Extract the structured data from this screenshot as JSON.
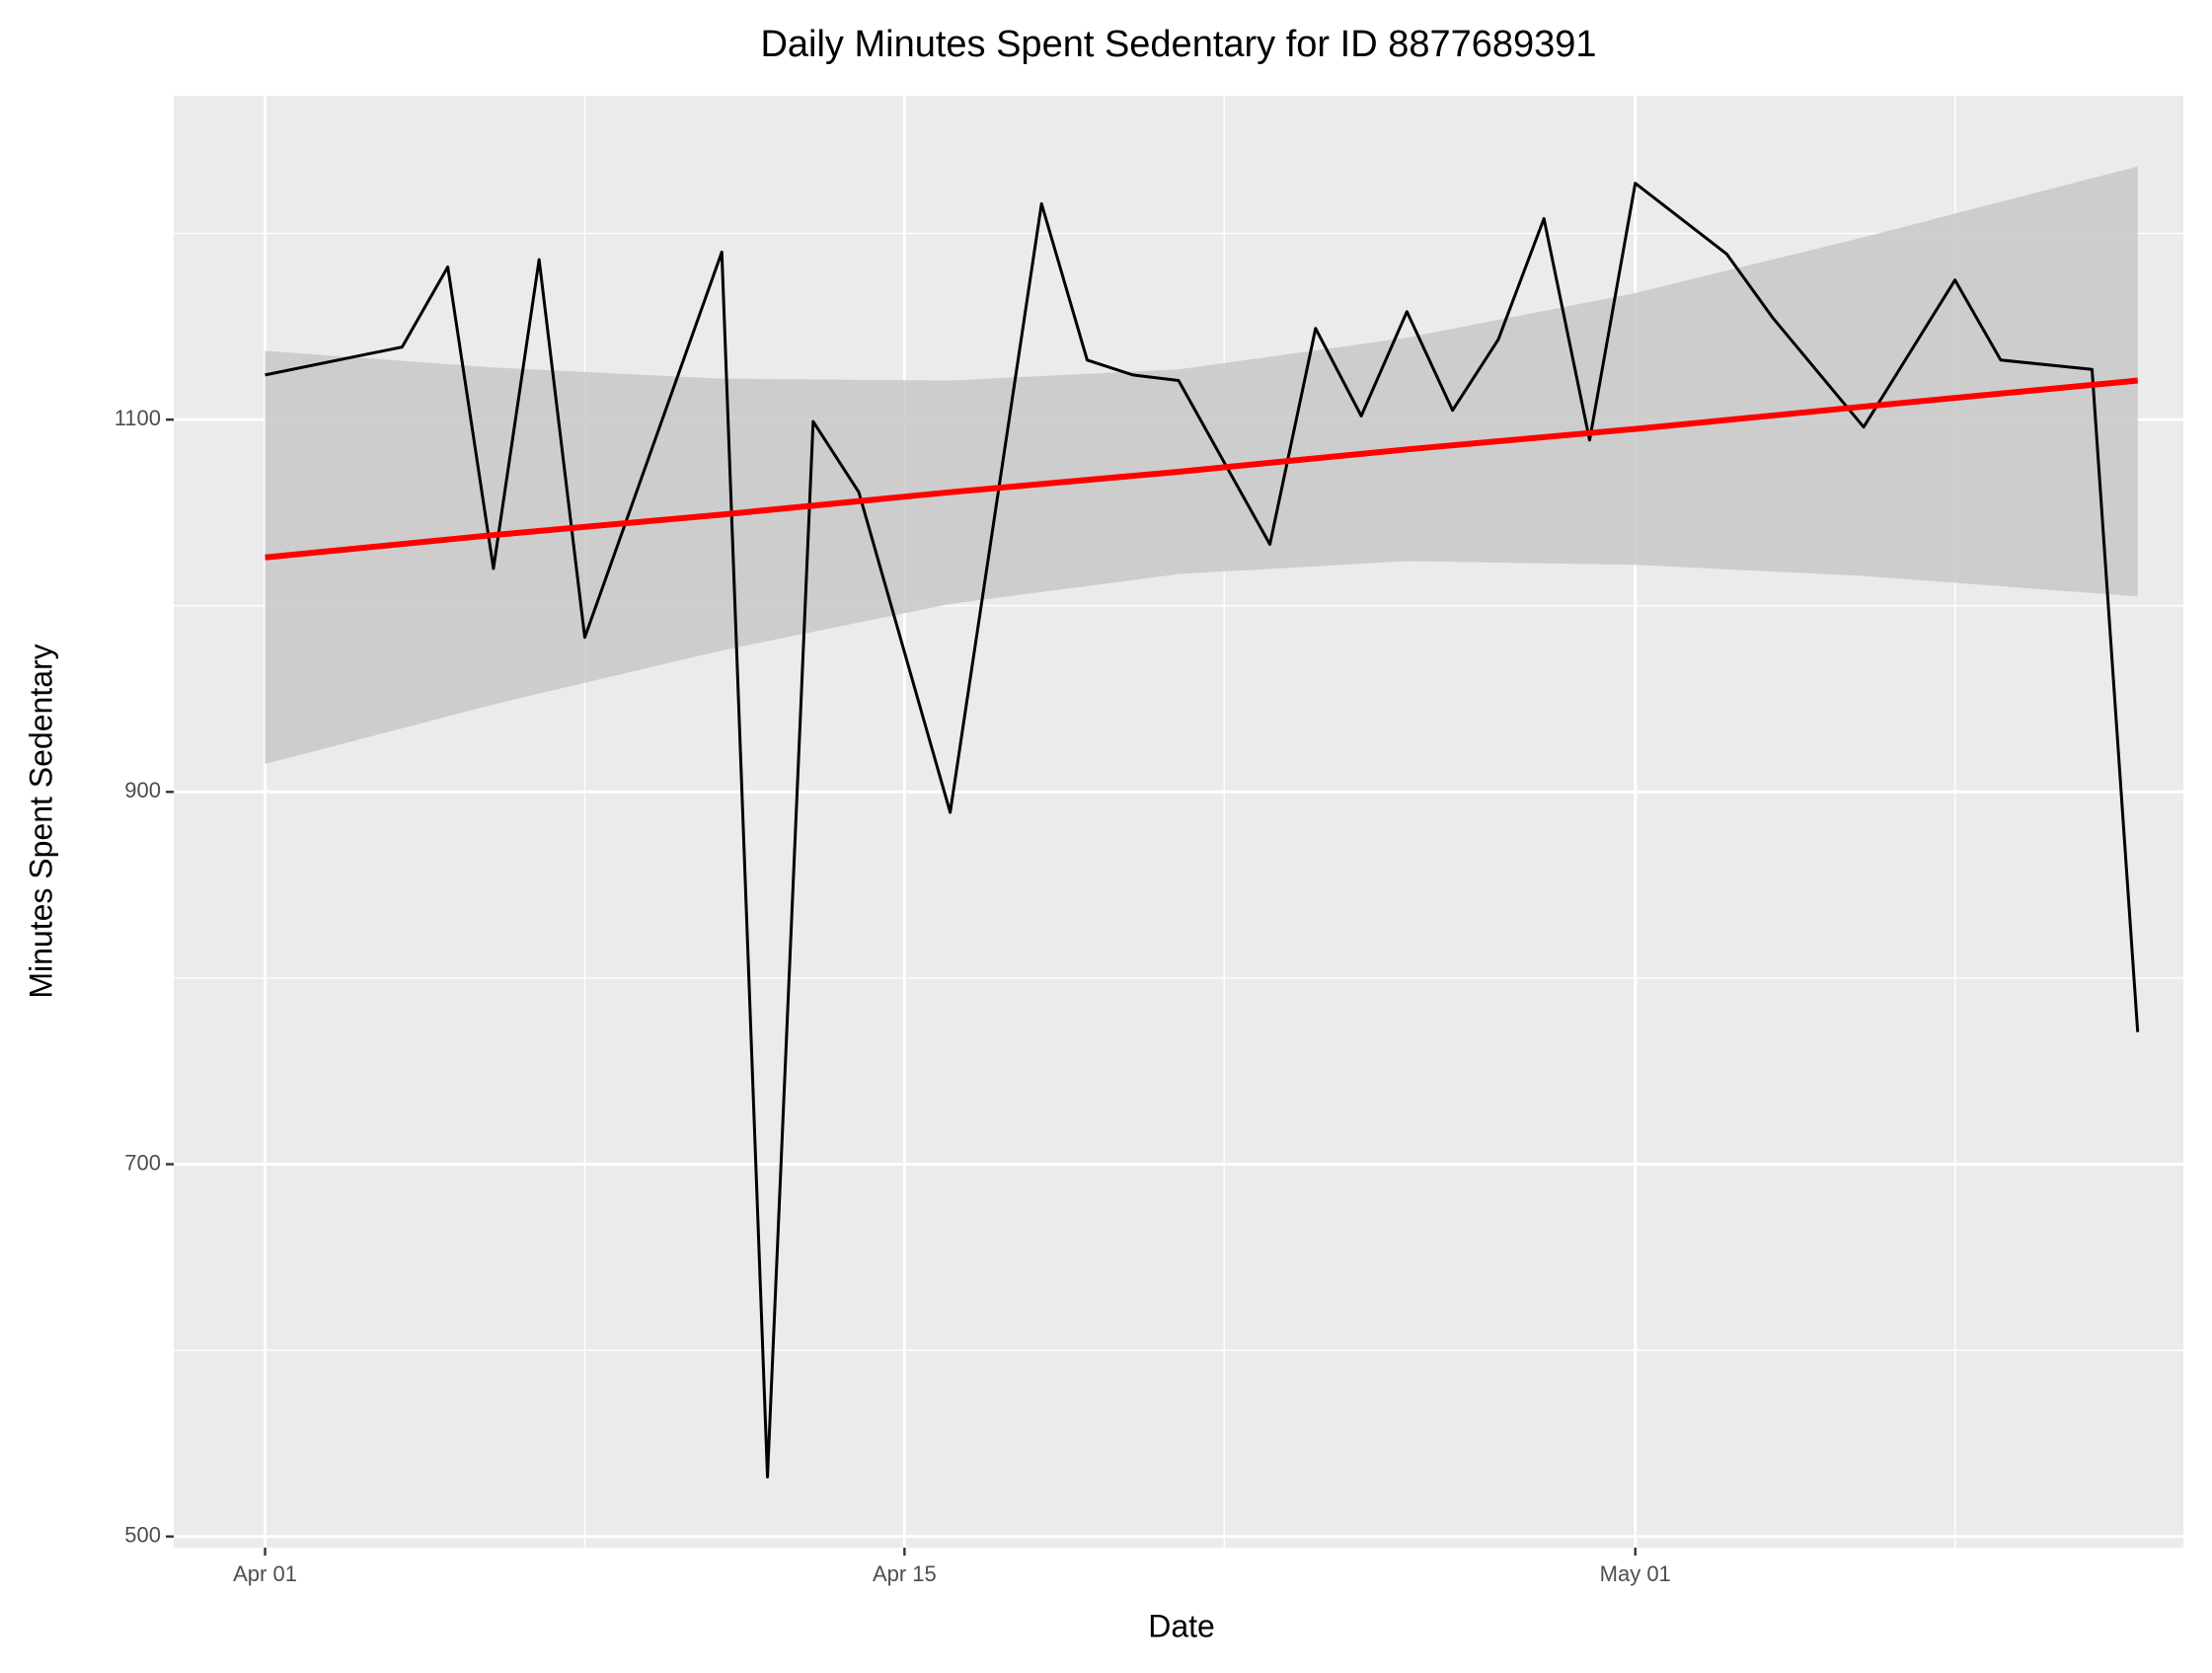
{
  "chart_data": {
    "type": "line",
    "title": "Daily Minutes Spent Sedentary for ID 8877689391",
    "x_label": "Date",
    "y_label": "Minutes Spent Sedentary",
    "x": [
      "Apr 01",
      "Apr 04",
      "Apr 05",
      "Apr 06",
      "Apr 07",
      "Apr 08",
      "Apr 11",
      "Apr 12",
      "Apr 13",
      "Apr 14",
      "Apr 16",
      "Apr 18",
      "Apr 19",
      "Apr 20",
      "Apr 21",
      "Apr 23",
      "Apr 24",
      "Apr 25",
      "Apr 26",
      "Apr 27",
      "Apr 28",
      "Apr 29",
      "Apr 30",
      "May 01",
      "May 03",
      "May 04",
      "May 06",
      "May 08",
      "May 09",
      "May 11",
      "May 12"
    ],
    "series": [
      {
        "name": "Minutes Spent Sedentary",
        "color": "#000000",
        "values": [
          1124,
          1139,
          1182,
          1020,
          1186,
          983,
          1190,
          532,
          1099,
          1061,
          889,
          1216,
          1132,
          1124,
          1121,
          1033,
          1149,
          1102,
          1158,
          1105,
          1143,
          1208,
          1089,
          1227,
          1189,
          1155,
          1096,
          1175,
          1132,
          1127,
          771
        ]
      }
    ],
    "trend": {
      "color": "#ff0000",
      "band_color": "#c8c8c8",
      "x": [
        "Apr 01",
        "Apr 06",
        "Apr 11",
        "Apr 16",
        "Apr 21",
        "Apr 26",
        "May 01",
        "May 06",
        "May 12"
      ],
      "fit": [
        1026,
        1038,
        1049,
        1061,
        1072,
        1084,
        1095,
        1107,
        1121
      ],
      "lower": [
        915,
        947,
        976,
        1001,
        1017,
        1024,
        1022,
        1016,
        1005
      ],
      "upper": [
        1137,
        1128,
        1122,
        1121,
        1127,
        1144,
        1168,
        1198,
        1236
      ]
    },
    "xlim": [
      "Mar 30",
      "May 13"
    ],
    "xticks": [
      "Apr 01",
      "Apr 15",
      "May 01"
    ],
    "xminor": [
      "Apr 08",
      "Apr 22",
      "May 08"
    ],
    "ylim": [
      494,
      1274
    ],
    "yticks": [
      500,
      700,
      900,
      1100
    ],
    "yminor": [
      600,
      800,
      1000,
      1200
    ],
    "grid": true
  }
}
